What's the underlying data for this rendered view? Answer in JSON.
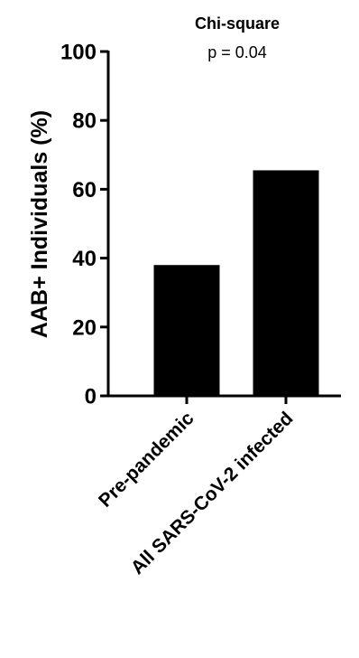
{
  "chart_data": {
    "type": "bar",
    "categories": [
      "Pre-pandemic",
      "All SARS-CoV-2 infected"
    ],
    "values": [
      38,
      65.5
    ],
    "title": "",
    "xlabel": "",
    "ylabel": "AAB+ Individuals (%)",
    "ylim": [
      0,
      100
    ],
    "yticks": [
      0,
      20,
      40,
      60,
      80,
      100
    ],
    "annotation": {
      "test": "Chi-square",
      "pvalue": "p = 0.04"
    },
    "bar_color": "#000000",
    "grid": false,
    "legend": "none"
  }
}
